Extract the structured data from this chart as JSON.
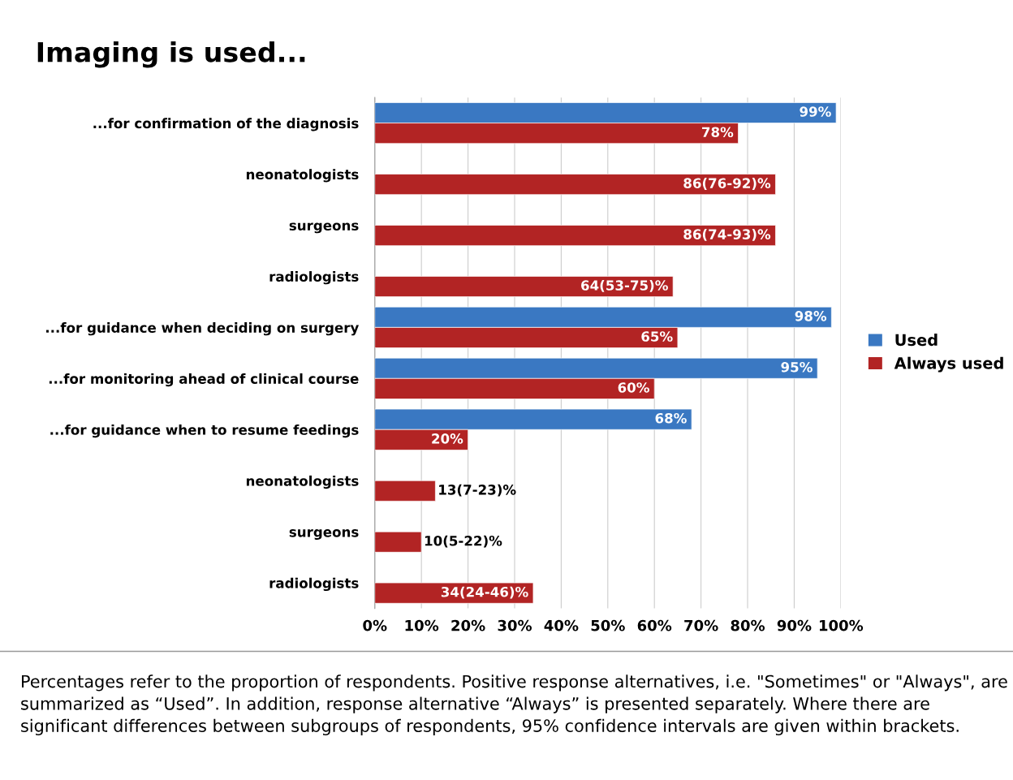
{
  "chart_data": {
    "type": "bar",
    "orientation": "horizontal",
    "title": "Imaging is used...",
    "categories": [
      "...for confirmation of the diagnosis",
      "neonatologists",
      "surgeons",
      "radiologists",
      "...for guidance when deciding on surgery",
      "...for monitoring ahead of clinical course",
      "...for guidance when to resume feedings",
      "neonatologists",
      "surgeons",
      "radiologists"
    ],
    "series": [
      {
        "name": "Used",
        "color": "#3a78c2",
        "values": [
          99,
          null,
          null,
          null,
          98,
          95,
          68,
          null,
          null,
          null
        ],
        "value_labels": [
          "99%",
          null,
          null,
          null,
          "98%",
          "95%",
          "68%",
          null,
          null,
          null
        ]
      },
      {
        "name": "Always used",
        "color": "#b22424",
        "values": [
          78,
          86,
          86,
          64,
          65,
          60,
          20,
          13,
          10,
          34
        ],
        "value_labels": [
          "78%",
          "86(76-92)%",
          "86(74-93)%",
          "64(53-75)%",
          "65%",
          "60%",
          "20%",
          "13(7-23)%",
          "10(5-22)%",
          "34(24-46)%"
        ]
      }
    ],
    "xlim": [
      0,
      100
    ],
    "xticks": [
      {
        "value": 0,
        "label": "0%"
      },
      {
        "value": 10,
        "label": "10%"
      },
      {
        "value": 20,
        "label": "20%"
      },
      {
        "value": 30,
        "label": "30%"
      },
      {
        "value": 40,
        "label": "40%"
      },
      {
        "value": 50,
        "label": "50%"
      },
      {
        "value": 60,
        "label": "60%"
      },
      {
        "value": 70,
        "label": "70%"
      },
      {
        "value": 80,
        "label": "80%"
      },
      {
        "value": 90,
        "label": "90%"
      },
      {
        "value": 100,
        "label": "100%"
      }
    ],
    "grid": "x",
    "legend": "right",
    "annotations": [
      "Percentages refer to the proportion of respondents. Positive response alternatives, i.e. \"Sometimes\" or \"Always\", are summarized as “Used”. In addition, response alternative “Always” is presented separately. Where there are significant differences between subgroups of respondents, 95% confidence intervals are given within brackets."
    ]
  }
}
